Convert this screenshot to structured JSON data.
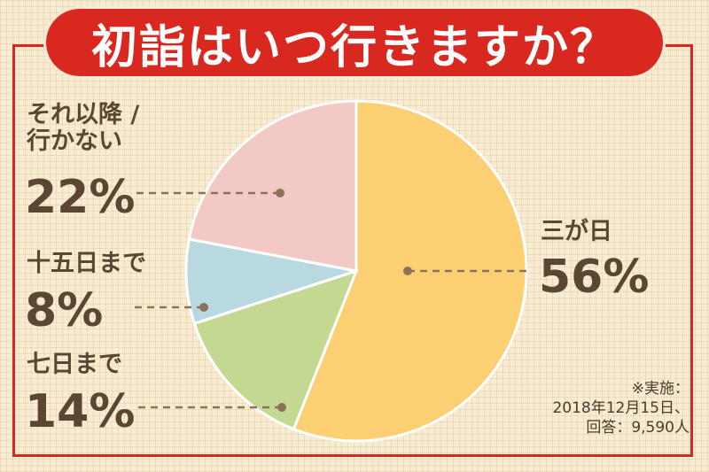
{
  "title": "初詣はいつ行きますか？",
  "note": [
    "※実施：",
    "2018年12月15日、",
    "回答：9,590人"
  ],
  "colors": {
    "frame": "#d8281f",
    "text": "#5a4633",
    "leader": "#8a7358"
  },
  "chart_data": {
    "type": "pie",
    "title": "初詣はいつ行きますか？",
    "slices": [
      {
        "label": "三が日",
        "value": 56,
        "color": "#fbcf72"
      },
      {
        "label": "七日まで",
        "value": 14,
        "color": "#c3d992"
      },
      {
        "label": "十五日まで",
        "value": 8,
        "color": "#b9d9e1"
      },
      {
        "label": "それ以降 / 行かない",
        "value": 22,
        "color": "#f3c9c6"
      }
    ],
    "data_labels": [
      "56%",
      "14%",
      "8%",
      "22%"
    ],
    "start": "12 o'clock",
    "direction": "clockwise",
    "legend": "none"
  }
}
